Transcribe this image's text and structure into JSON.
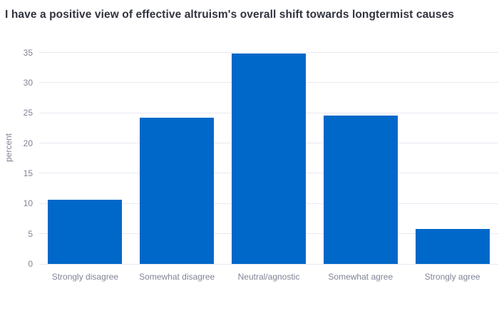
{
  "chart_data": {
    "type": "bar",
    "title": "I have a positive view of effective altruism's overall shift towards longtermist causes",
    "categories": [
      "Strongly disagree",
      "Somewhat disagree",
      "Neutral/agnostic",
      "Somewhat agree",
      "Strongly agree"
    ],
    "values": [
      10.6,
      24.2,
      34.8,
      24.6,
      5.8
    ],
    "xlabel": "",
    "ylabel": "percent",
    "ylim": [
      0,
      35
    ],
    "yticks": [
      0,
      5,
      10,
      15,
      20,
      25,
      30,
      35
    ],
    "grid": true,
    "legend": "none",
    "colors": {
      "bar": "#0068c9",
      "grid": "#e8eaf2",
      "axis_text": "#808495",
      "title_text": "#31333f",
      "background": "#ffffff"
    }
  }
}
